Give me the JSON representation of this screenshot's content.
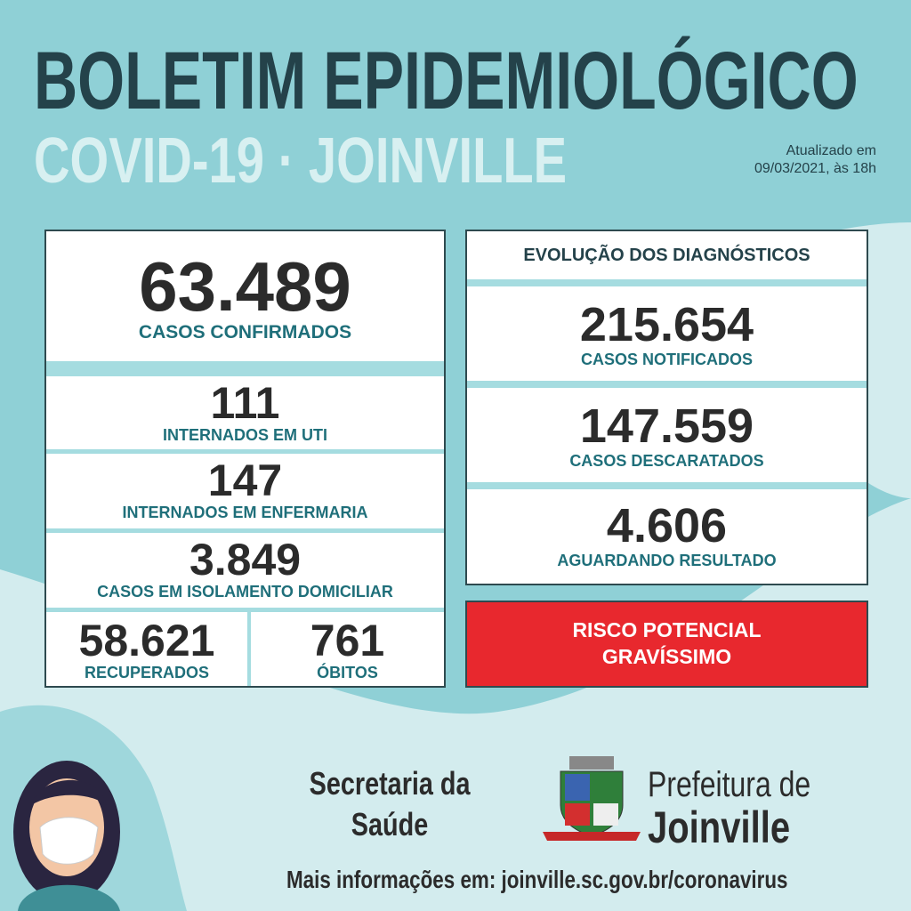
{
  "header": {
    "title": "BOLETIM EPIDEMIOLÓGICO",
    "subtitle": "COVID-19 · JOINVILLE",
    "updated": [
      "Atualizado em",
      "09/03/2021, às 18h"
    ]
  },
  "left_panel": {
    "confirmed": {
      "value": "63.489",
      "label": "CASOS CONFIRMADOS"
    },
    "rows": [
      {
        "value": "111",
        "label": "INTERNADOS EM UTI"
      },
      {
        "value": "147",
        "label": "INTERNADOS EM ENFERMARIA"
      },
      {
        "value": "3.849",
        "label": "CASOS EM ISOLAMENTO DOMICILIAR"
      }
    ],
    "bottom": [
      {
        "value": "58.621",
        "label": "RECUPERADOS"
      },
      {
        "value": "761",
        "label": "ÓBITOS"
      }
    ]
  },
  "right_panel": {
    "title": "EVOLUÇÃO DOS DIAGNÓSTICOS",
    "rows": [
      {
        "value": "215.654",
        "label": "CASOS NOTIFICADOS"
      },
      {
        "value": "147.559",
        "label": "CASOS DESCARATADOS"
      },
      {
        "value": "4.606",
        "label": "AGUARDANDO RESULTADO"
      }
    ]
  },
  "risk": [
    "RISCO POTENCIAL",
    "GRAVÍSSIMO"
  ],
  "footer": {
    "secretaria": [
      "Secretaria da",
      "Saúde"
    ],
    "prefeitura": [
      "Prefeitura de",
      "Joinville"
    ],
    "more_info": "Mais informações em:",
    "url": "joinville.sc.gov.br/coronavirus"
  }
}
